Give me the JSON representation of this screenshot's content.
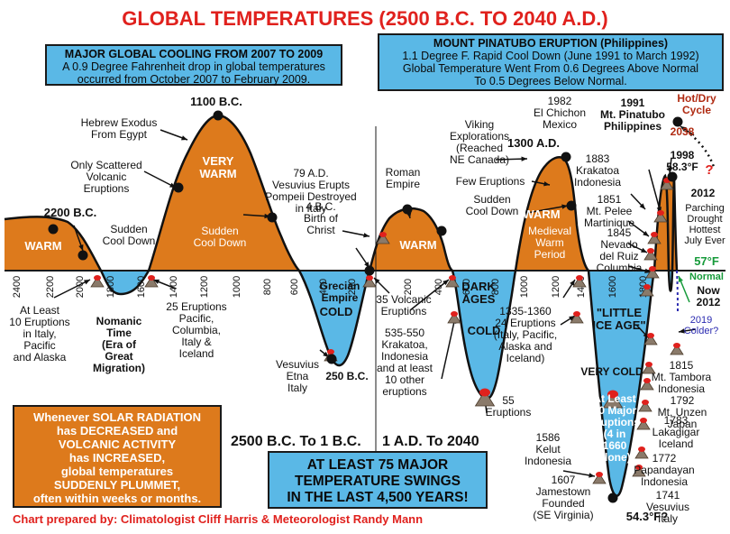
{
  "title": "GLOBAL TEMPERATURES (2500 B.C. TO 2040 A.D.)",
  "credit": "Chart prepared by: Climatologist Cliff Harris & Meteorologist Randy Mann",
  "colors": {
    "warm": "#dd7a1c",
    "cold": "#5ab8e6",
    "title": "#e0211d",
    "normal": "#169a3a",
    "hot": "#b02b12",
    "future": "#2a2ab0"
  },
  "boxes": {
    "cooling": {
      "heading": "MAJOR GLOBAL COOLING FROM 2007 TO 2009",
      "line1": "A 0.9 Degree Fahrenheit drop in global temperatures",
      "line2": "occurred from October 2007 to February 2009."
    },
    "pinatubo": {
      "heading": "MOUNT PINATUBO ERUPTION (Philippines)",
      "line1": "1.1 Degree F. Rapid Cool Down (June 1991 to March 1992)",
      "line2": "Global Temperature Went From 0.6 Degrees Above Normal",
      "line3": "To 0.5 Degrees Below Normal."
    },
    "solar": {
      "line1": "Whenever SOLAR RADIATION",
      "line2": "has DECREASED and",
      "line3": "VOLCANIC ACTIVITY",
      "line4": "has INCREASED,",
      "line5": "global temperatures",
      "line6": "SUDDENLY PLUMMET,",
      "line7": "often within weeks or months."
    },
    "swings": {
      "line1": "AT LEAST 75 MAJOR",
      "line2": "TEMPERATURE SWINGS",
      "line3": "IN THE LAST 4,500 YEARS!"
    }
  },
  "eras": {
    "bc": "2500 B.C. To 1 B.C.",
    "ad": "1 A.D. To 2040"
  },
  "axis_ticks_bc": [
    "2400",
    "2200",
    "2000",
    "1800",
    "1600",
    "1400",
    "1200",
    "1000",
    "800",
    "600",
    "400",
    "200"
  ],
  "axis_ticks_ad": [
    "200",
    "400",
    "600",
    "800",
    "1000",
    "1200",
    "1400",
    "1600",
    "1800"
  ],
  "labels": [
    {
      "id": "b2200",
      "lines": [
        "2200 B.C."
      ],
      "bold": true
    },
    {
      "id": "warm1",
      "lines": [
        "WARM"
      ],
      "bold": true,
      "color": "#ffffff"
    },
    {
      "id": "sudden1",
      "lines": [
        "Sudden",
        "Cool Down"
      ]
    },
    {
      "id": "scattered",
      "lines": [
        "Only Scattered",
        "Volcanic",
        "Eruptions"
      ]
    },
    {
      "id": "hebrew",
      "lines": [
        "Hebrew Exodus",
        "From Egypt"
      ]
    },
    {
      "id": "b1100",
      "lines": [
        "1100 B.C."
      ],
      "bold": true
    },
    {
      "id": "verywarm",
      "lines": [
        "VERY",
        "WARM"
      ],
      "bold": true,
      "color": "#ffffff"
    },
    {
      "id": "sudden2",
      "lines": [
        "Sudden",
        "Cool Down"
      ],
      "color": "#ffffff"
    },
    {
      "id": "tenerupt",
      "lines": [
        "At Least",
        "10 Eruptions",
        "in Italy,",
        "Pacific",
        "and Alaska"
      ]
    },
    {
      "id": "nomanic",
      "lines": [
        "Nomanic",
        "Time",
        "(Era of",
        "Great",
        "Migration)"
      ],
      "bold": true
    },
    {
      "id": "twentyfive",
      "lines": [
        "25 Eruptions",
        "Pacific,",
        "Columbia,",
        "Italy &",
        "Iceland"
      ]
    },
    {
      "id": "vesuvius79",
      "lines": [
        "79 A.D.",
        "Vesuvius Erupts",
        "Pompeii Destroyed",
        "in Italy"
      ]
    },
    {
      "id": "christ",
      "lines": [
        "4 B.C.",
        "Birth of",
        "Christ"
      ]
    },
    {
      "id": "grecian",
      "lines": [
        "Grecian",
        "Empire"
      ],
      "bold": true
    },
    {
      "id": "cold1",
      "lines": [
        "COLD"
      ],
      "bold": true
    },
    {
      "id": "vesetna",
      "lines": [
        "Vesuvius",
        "Etna",
        "Italy"
      ]
    },
    {
      "id": "b250",
      "lines": [
        "250 B.C."
      ],
      "bold": true
    },
    {
      "id": "thirtyfive",
      "lines": [
        "35 Volcanic",
        "Eruptions"
      ]
    },
    {
      "id": "roman",
      "lines": [
        "Roman",
        "Empire"
      ]
    },
    {
      "id": "warm2",
      "lines": [
        "WARM"
      ],
      "bold": true,
      "color": "#ffffff"
    },
    {
      "id": "viking",
      "lines": [
        "Viking",
        "Explorations",
        "(Reached",
        "NE Canada)"
      ]
    },
    {
      "id": "few",
      "lines": [
        "Few Eruptions"
      ]
    },
    {
      "id": "sudden3",
      "lines": [
        "Sudden",
        "Cool Down"
      ]
    },
    {
      "id": "a1300",
      "lines": [
        "1300 A.D."
      ],
      "bold": true
    },
    {
      "id": "warm3",
      "lines": [
        "WARM"
      ],
      "bold": true,
      "color": "#ffffff"
    },
    {
      "id": "medieval",
      "lines": [
        "Medieval",
        "Warm",
        "Period"
      ],
      "color": "#ffffff"
    },
    {
      "id": "darkages",
      "lines": [
        "DARK",
        "AGES"
      ],
      "bold": true
    },
    {
      "id": "cold2",
      "lines": [
        "COLD"
      ],
      "bold": true
    },
    {
      "id": "krakatoa535",
      "lines": [
        "535-550",
        "Krakatoa,",
        "Indonesia",
        "and at least",
        "10 other",
        "eruptions"
      ]
    },
    {
      "id": "fiftyfive",
      "lines": [
        "55",
        "Eruptions"
      ]
    },
    {
      "id": "e1335",
      "lines": [
        "1335-1360",
        "24 Eruptions",
        "(Italy, Pacific,",
        "Alaska and",
        "Iceland)"
      ]
    },
    {
      "id": "littleice",
      "lines": [
        "\"LITTLE",
        "ICE AGE\""
      ],
      "bold": true
    },
    {
      "id": "verycold",
      "lines": [
        "VERY COLD"
      ],
      "bold": true
    },
    {
      "id": "ninety",
      "lines": [
        "At Least",
        "90 Major",
        "Eruptions",
        "(4 in",
        "1660",
        "alone)"
      ],
      "bold": true,
      "color": "#ffffff"
    },
    {
      "id": "kelut",
      "lines": [
        "1586",
        "Kelut",
        "Indonesia"
      ]
    },
    {
      "id": "jamestown",
      "lines": [
        "1607",
        "Jamestown",
        "Founded",
        "(SE Virginia)"
      ]
    },
    {
      "id": "low543",
      "lines": [
        "54.3°F?"
      ],
      "bold": true
    },
    {
      "id": "chichon",
      "lines": [
        "1982",
        "El Chichon",
        "Mexico"
      ]
    },
    {
      "id": "pinatubo",
      "lines": [
        "1991",
        "Mt. Pinatubo",
        "Philippines"
      ],
      "bold": true
    },
    {
      "id": "krakatoa1883",
      "lines": [
        "1883",
        "Krakatoa",
        "Indonesia"
      ]
    },
    {
      "id": "pelee",
      "lines": [
        "1851",
        "Mt. Pelee",
        "Martinique"
      ]
    },
    {
      "id": "ruiz",
      "lines": [
        "1845",
        "Nevado",
        "del Ruiz",
        "Columbia"
      ]
    },
    {
      "id": "y1998",
      "lines": [
        "1998",
        "58.3°F"
      ],
      "bold": true
    },
    {
      "id": "hotdry",
      "lines": [
        "Hot/Dry",
        "Cycle"
      ],
      "bold": true,
      "color": "#b02b12"
    },
    {
      "id": "y2038",
      "lines": [
        "2038"
      ],
      "bold": true,
      "color": "#b02b12"
    },
    {
      "id": "qmark",
      "lines": [
        "?"
      ],
      "bold": true,
      "color": "#e0211d"
    },
    {
      "id": "y2012",
      "lines": [
        "2012"
      ],
      "bold": true
    },
    {
      "id": "parching",
      "lines": [
        "Parching",
        "Drought",
        "Hottest",
        "July Ever"
      ]
    },
    {
      "id": "normal57",
      "lines": [
        "57°F"
      ],
      "bold": true,
      "color": "#169a3a"
    },
    {
      "id": "normal",
      "lines": [
        "Normal"
      ],
      "bold": true,
      "color": "#169a3a"
    },
    {
      "id": "now2012",
      "lines": [
        "Now",
        "2012"
      ],
      "bold": true
    },
    {
      "id": "colder2019",
      "lines": [
        "2019",
        "Colder?"
      ],
      "color": "#2a2ab0"
    },
    {
      "id": "tambora",
      "lines": [
        "1815",
        "Mt. Tambora",
        "Indonesia"
      ]
    },
    {
      "id": "unzen",
      "lines": [
        "1792",
        "Mt. Unzen",
        "Japan"
      ]
    },
    {
      "id": "lakagigar",
      "lines": [
        "1783",
        "Lakagigar",
        "Iceland"
      ]
    },
    {
      "id": "papandayan",
      "lines": [
        "1772",
        "Papandayan",
        "Indonesia"
      ]
    },
    {
      "id": "vesuvius1741",
      "lines": [
        "1741",
        "Vesuvius",
        "Italy"
      ]
    }
  ]
}
